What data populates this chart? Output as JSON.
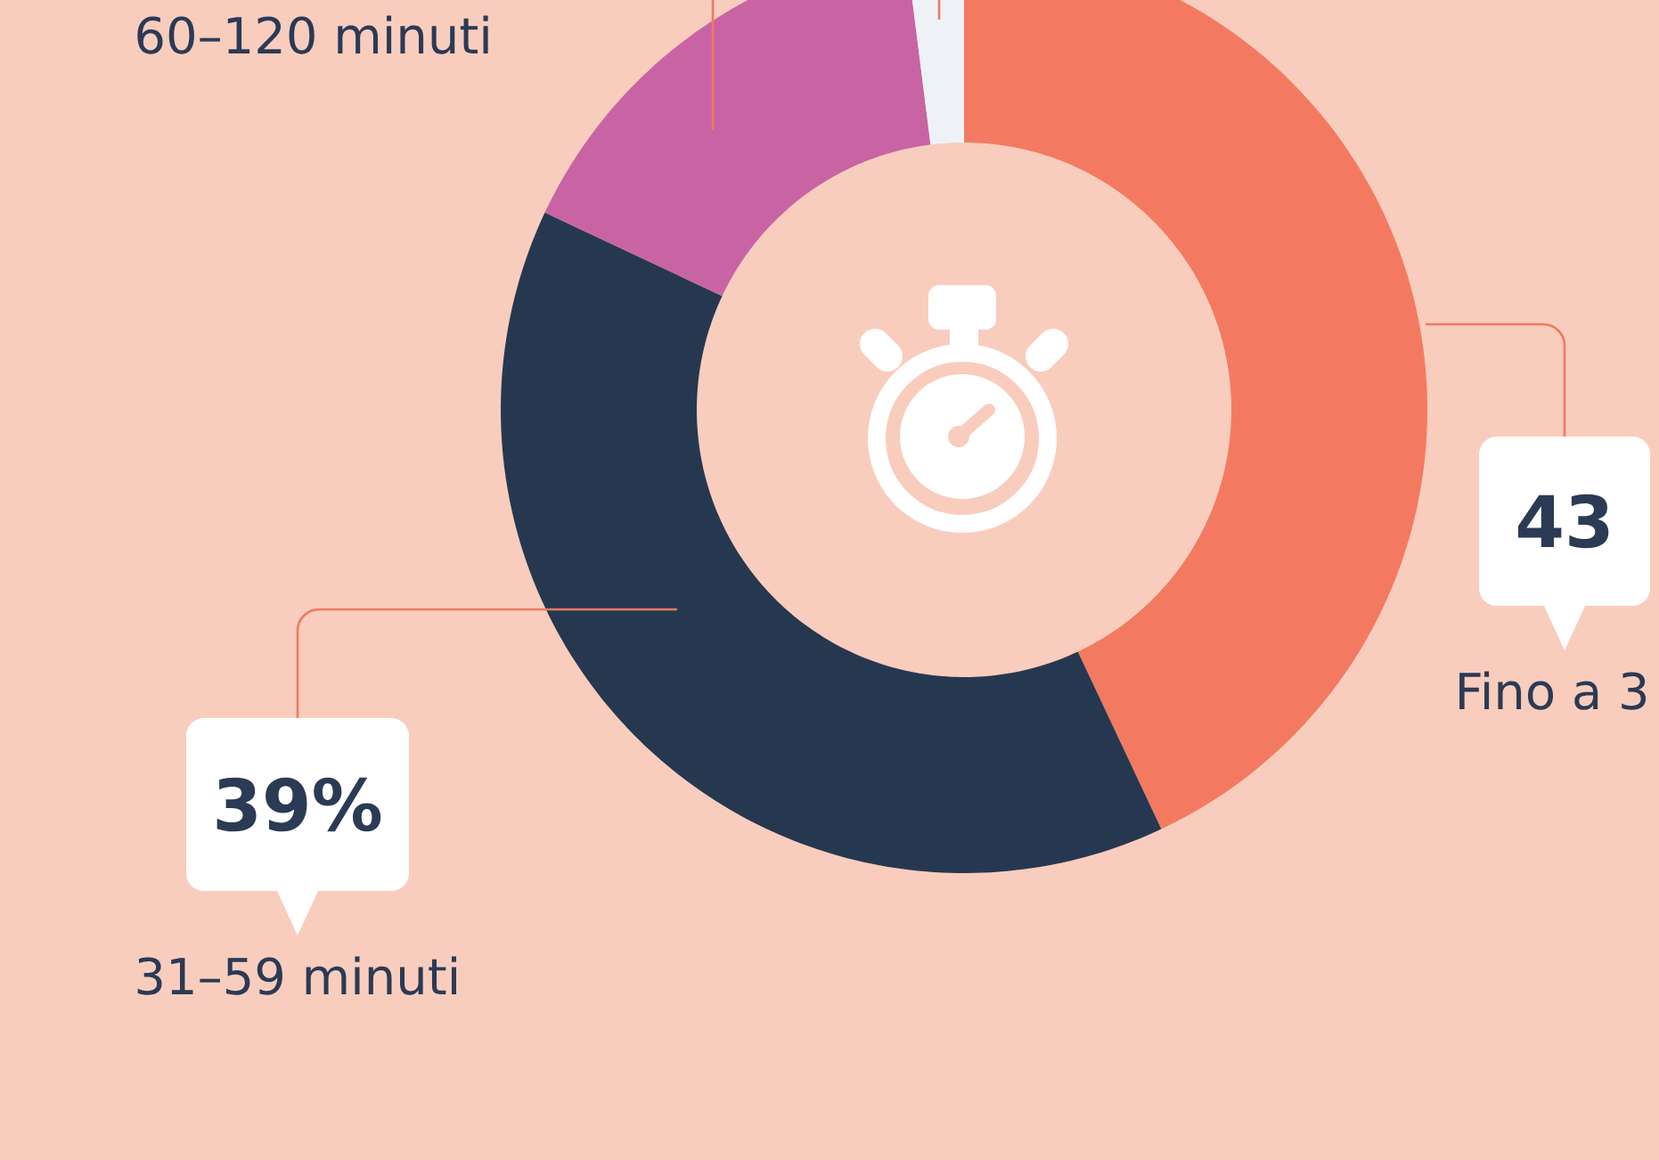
{
  "chart_data": {
    "type": "donut",
    "categories": [
      "Fino a 3",
      "31–59 minuti",
      "60–120 minuti",
      null
    ],
    "values": [
      43,
      39,
      16,
      2
    ],
    "colors": [
      "#f37a61",
      "#263850",
      "#c964a4",
      "#eef2f7"
    ],
    "value_labels": [
      "43",
      "39%",
      null,
      null
    ]
  }
}
